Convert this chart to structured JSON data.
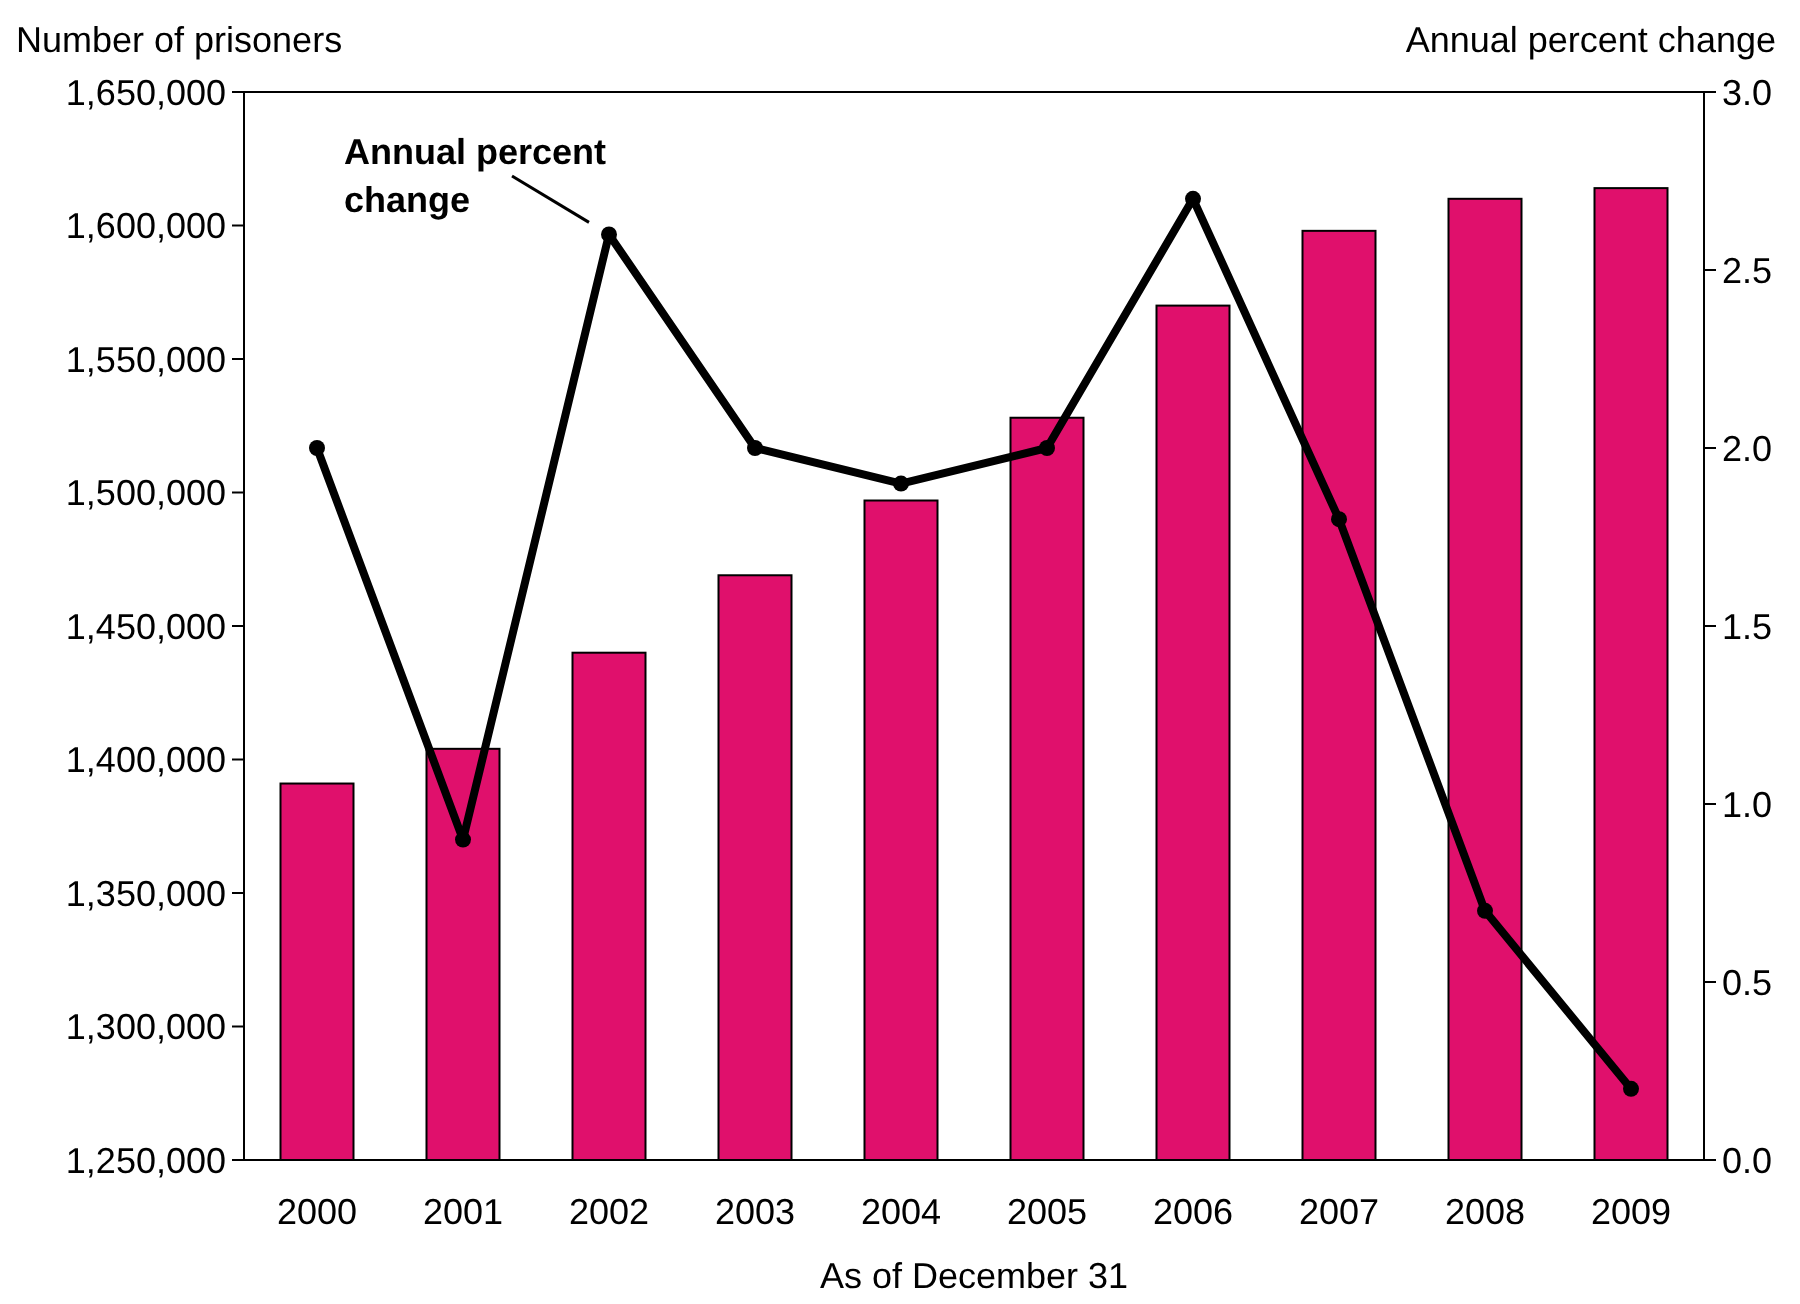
{
  "chart_data": {
    "type": "bar",
    "categories": [
      "2000",
      "2001",
      "2002",
      "2003",
      "2004",
      "2005",
      "2006",
      "2007",
      "2008",
      "2009"
    ],
    "ylabel": "Number of prisoners",
    "y2label": "Annual percent change",
    "xlabel": "As of December 31",
    "series": [
      {
        "color": "#e0106c",
        "values": [
          1391000,
          1404000,
          1440000,
          1469000,
          1497000,
          1528000,
          1570000,
          1598000,
          1610000,
          1614000
        ]
      },
      {
        "type": "line",
        "name": "Annual percent change",
        "axis": "y2",
        "color": "#000000",
        "marker": "circle",
        "line_style": "solid",
        "values": [
          2.0,
          0.9,
          2.6,
          2.0,
          1.9,
          2.0,
          2.7,
          1.8,
          0.7,
          0.2
        ]
      }
    ],
    "ylim": [
      1250000,
      1650000
    ],
    "yticks": [
      {
        "value": 1250000,
        "label": "1,250,000"
      },
      {
        "value": 1300000,
        "label": "1,300,000"
      },
      {
        "value": 1350000,
        "label": "1,350,000"
      },
      {
        "value": 1400000,
        "label": "1,400,000"
      },
      {
        "value": 1450000,
        "label": "1,450,000"
      },
      {
        "value": 1500000,
        "label": "1,500,000"
      },
      {
        "value": 1550000,
        "label": "1,550,000"
      },
      {
        "value": 1600000,
        "label": "1,600,000"
      },
      {
        "value": 1650000,
        "label": "1,650,000"
      }
    ],
    "y2lim": [
      0,
      3
    ],
    "y2ticks": [
      {
        "value": 0,
        "label": "0.0"
      },
      {
        "value": 0.5,
        "label": "0.5"
      },
      {
        "value": 1,
        "label": "1.0"
      },
      {
        "value": 1.5,
        "label": "1.5"
      },
      {
        "value": 2,
        "label": "2.0"
      },
      {
        "value": 2.5,
        "label": "2.5"
      },
      {
        "value": 3,
        "label": "3.0"
      }
    ],
    "grid": false
  }
}
